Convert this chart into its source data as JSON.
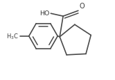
{
  "background_color": "#ffffff",
  "line_color": "#4a4a4a",
  "line_width": 1.2,
  "text_color": "#3a3a3a",
  "fig_width": 1.66,
  "fig_height": 1.16,
  "dpi": 100,
  "xlim": [
    0,
    166
  ],
  "ylim": [
    0,
    116
  ]
}
